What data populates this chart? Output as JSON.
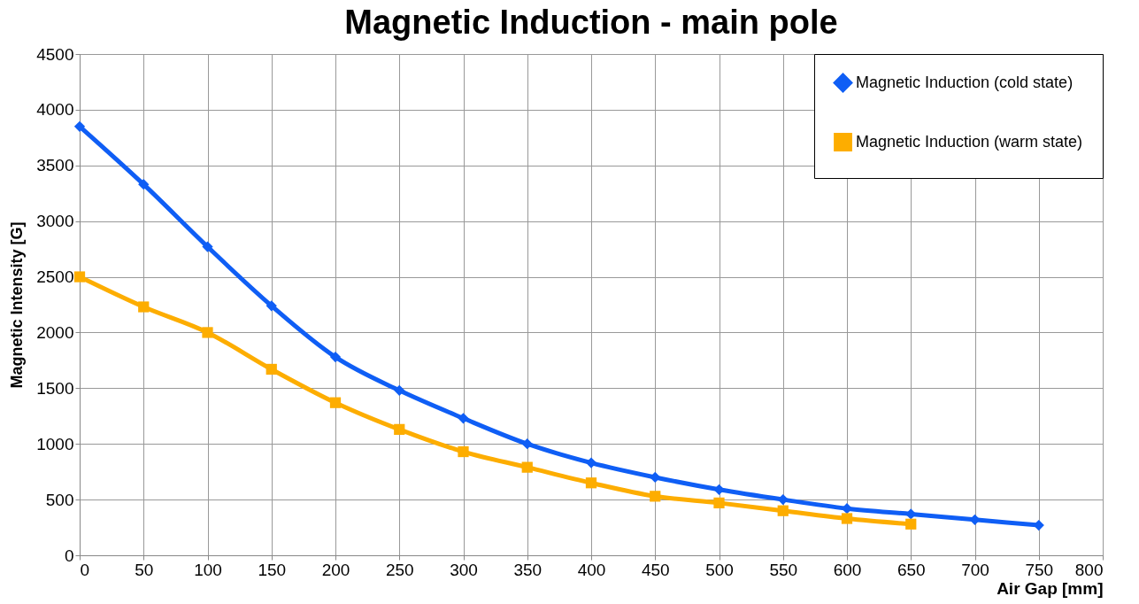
{
  "chart_data": {
    "type": "line",
    "title": "Magnetic Induction - main pole",
    "xlabel": "Air Gap [mm]",
    "ylabel": "Magnetic Intensity [G]",
    "x": [
      0,
      50,
      100,
      150,
      200,
      250,
      300,
      350,
      400,
      450,
      500,
      550,
      600,
      650,
      700,
      750
    ],
    "series": [
      {
        "name": "Magnetic Induction (cold state)",
        "color": "#0f5ef5",
        "marker": "diamond",
        "values": [
          3850,
          3330,
          2770,
          2240,
          1780,
          1480,
          1230,
          1000,
          830,
          700,
          590,
          500,
          420,
          370,
          320,
          270
        ]
      },
      {
        "name": "Magnetic Induction (warm state)",
        "color": "#fdad00",
        "marker": "square",
        "values": [
          2500,
          2230,
          2000,
          1670,
          1370,
          1130,
          930,
          790,
          650,
          530,
          470,
          400,
          330,
          280,
          null,
          null
        ]
      }
    ],
    "xlim": [
      0,
      800
    ],
    "xticks": [
      0,
      50,
      100,
      150,
      200,
      250,
      300,
      350,
      400,
      450,
      500,
      550,
      600,
      650,
      700,
      750,
      800
    ],
    "ylim": [
      0,
      4500
    ],
    "yticks": [
      0,
      500,
      1000,
      1500,
      2000,
      2500,
      3000,
      3500,
      4000,
      4500
    ],
    "grid": true,
    "legend": "top right",
    "line_style": "solid"
  }
}
